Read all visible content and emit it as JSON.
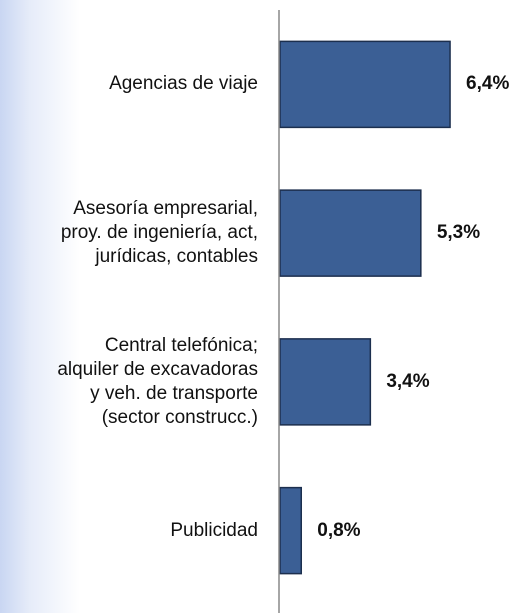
{
  "chart_data": {
    "type": "bar",
    "orientation": "horizontal",
    "categories": [
      "Agencias de viaje",
      "Asesoría empresarial,\nproy. de ingeniería, act,\njurídicas, contables",
      "Central telefónica;\nalquiler de excavadoras\ny veh. de transporte\n(sector construcc.)",
      "Publicidad"
    ],
    "values": [
      6.4,
      5.3,
      3.4,
      0.8
    ],
    "value_labels": [
      "6,4%",
      "5,3%",
      "3,4%",
      "0,8%"
    ],
    "color": "#3b5f95",
    "xlim": [
      0,
      7
    ]
  }
}
